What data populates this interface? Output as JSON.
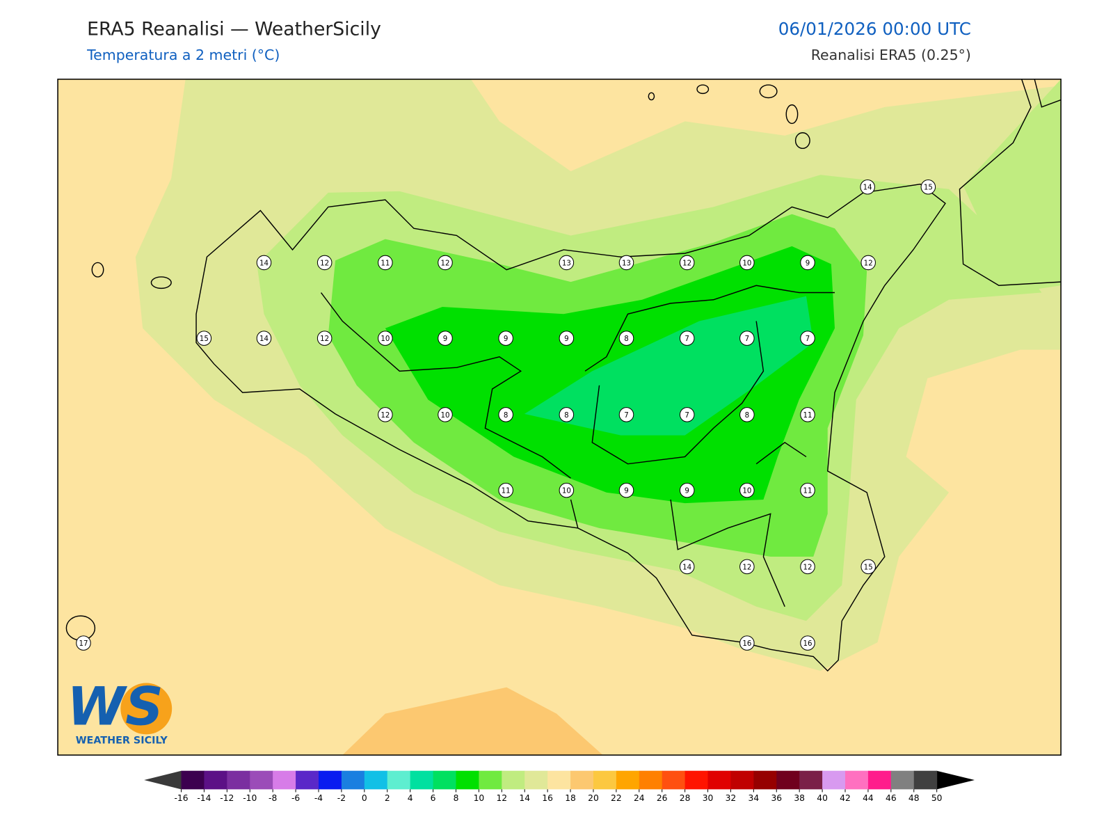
{
  "header": {
    "title": "ERA5 Reanalisi — WeatherSicily",
    "subtitle": "Temperatura a 2 metri (°C)",
    "datetime": "06/01/2026 00:00 UTC",
    "source": "Reanalisi ERA5 (0.25°)"
  },
  "map": {
    "background": "#fde4a0",
    "stations": [
      14,
      12,
      11,
      12,
      13,
      13,
      12,
      10,
      9,
      12,
      15,
      14,
      12,
      10,
      9,
      9,
      9,
      8,
      7,
      7,
      7,
      12,
      10,
      8,
      8,
      7,
      7,
      8,
      11,
      11,
      10,
      9,
      9,
      10,
      11,
      14,
      12,
      12,
      15,
      16,
      16,
      14,
      15,
      17
    ]
  },
  "logo": {
    "mark": "WS",
    "text": "WEATHER SICILY"
  },
  "colorbar": {
    "ticks": [
      -16,
      -14,
      -12,
      -10,
      -8,
      -6,
      -4,
      -2,
      0,
      2,
      4,
      6,
      8,
      10,
      12,
      14,
      16,
      18,
      20,
      22,
      24,
      26,
      28,
      30,
      32,
      34,
      36,
      38,
      40,
      42,
      44,
      46,
      48,
      50
    ],
    "colors": [
      "#3c004f",
      "#5c1186",
      "#7b2fa0",
      "#9b4cb8",
      "#d77ce8",
      "#5a28c8",
      "#0a1cf0",
      "#1a7fe0",
      "#12c0e6",
      "#5eeed0",
      "#00e0a0",
      "#00e060",
      "#00e000",
      "#70ea40",
      "#c0ec80",
      "#e0e898",
      "#fde4a0",
      "#fcc870",
      "#fcc840",
      "#ffa500",
      "#ff8000",
      "#ff5010",
      "#ff1400",
      "#e00000",
      "#c00000",
      "#960000",
      "#70001e",
      "#7a2048",
      "#d89af0",
      "#ff70c0",
      "#ff1c8c",
      "#808080",
      "#404040"
    ],
    "under_color": "#3a3a3a",
    "over_color": "#000000"
  }
}
